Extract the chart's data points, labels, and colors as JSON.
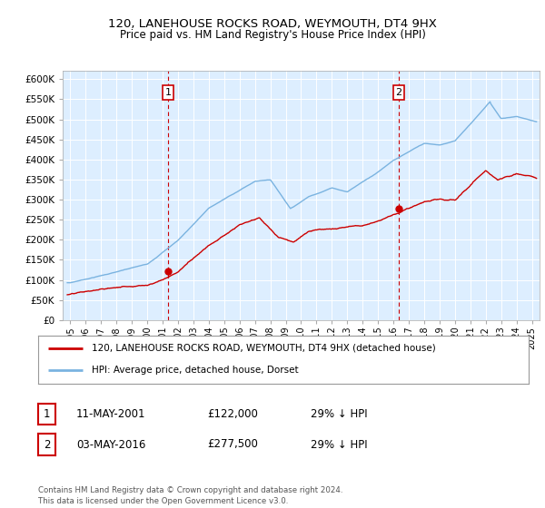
{
  "title1": "120, LANEHOUSE ROCKS ROAD, WEYMOUTH, DT4 9HX",
  "title2": "Price paid vs. HM Land Registry's House Price Index (HPI)",
  "ylabel_ticks": [
    "£0",
    "£50K",
    "£100K",
    "£150K",
    "£200K",
    "£250K",
    "£300K",
    "£350K",
    "£400K",
    "£450K",
    "£500K",
    "£550K",
    "£600K"
  ],
  "ytick_values": [
    0,
    50000,
    100000,
    150000,
    200000,
    250000,
    300000,
    350000,
    400000,
    450000,
    500000,
    550000,
    600000
  ],
  "xlim": [
    1994.5,
    2025.5
  ],
  "ylim": [
    0,
    620000
  ],
  "bg_color": "#ddeeff",
  "hpi_color": "#7ab3e0",
  "price_color": "#cc0000",
  "sale1": {
    "date_num": 2001.36,
    "price": 122000,
    "label": "1",
    "date_str": "11-MAY-2001",
    "pct": "29%"
  },
  "sale2": {
    "date_num": 2016.35,
    "price": 277500,
    "label": "2",
    "date_str": "03-MAY-2016",
    "pct": "29%"
  },
  "legend_line1": "120, LANEHOUSE ROCKS ROAD, WEYMOUTH, DT4 9HX (detached house)",
  "legend_line2": "HPI: Average price, detached house, Dorset",
  "footnote": "Contains HM Land Registry data © Crown copyright and database right 2024.\nThis data is licensed under the Open Government Licence v3.0.",
  "xticks": [
    1995,
    1996,
    1997,
    1998,
    1999,
    2000,
    2001,
    2002,
    2003,
    2004,
    2005,
    2006,
    2007,
    2008,
    2009,
    2010,
    2011,
    2012,
    2013,
    2014,
    2015,
    2016,
    2017,
    2018,
    2019,
    2020,
    2021,
    2022,
    2023,
    2024,
    2025
  ]
}
